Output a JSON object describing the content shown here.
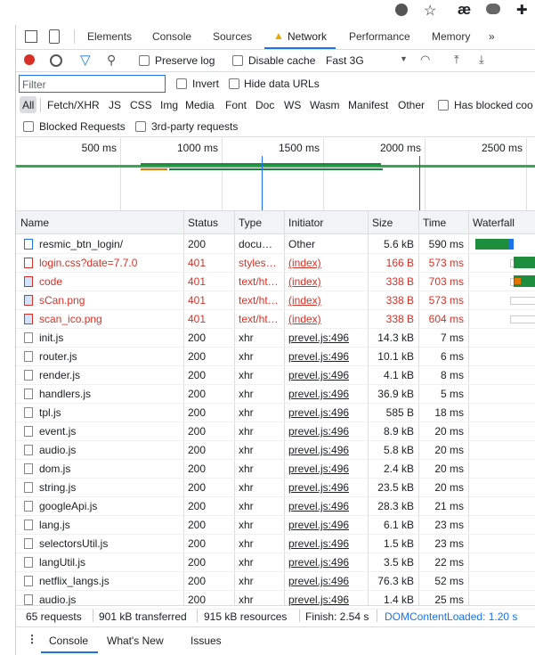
{
  "browser": {
    "extension_icon": "æ"
  },
  "tabs": [
    "Elements",
    "Console",
    "Sources",
    "Network",
    "Performance",
    "Memory",
    "»"
  ],
  "toolbar": {
    "preserve_log": "Preserve log",
    "disable_cache": "Disable cache",
    "throttling": "Fast 3G"
  },
  "filter": {
    "placeholder": "Filter",
    "invert": "Invert",
    "hide_data_urls": "Hide data URLs"
  },
  "type_filters": [
    "All",
    "Fetch/XHR",
    "JS",
    "CSS",
    "Img",
    "Media",
    "Font",
    "Doc",
    "WS",
    "Wasm",
    "Manifest",
    "Other"
  ],
  "has_blocked_cookies": "Has blocked coo",
  "blocked_requests": "Blocked Requests",
  "third_party": "3rd-party requests",
  "overview": {
    "ticks": [
      "500 ms",
      "1000 ms",
      "1500 ms",
      "2000 ms",
      "2500 ms"
    ]
  },
  "table": {
    "columns": [
      "Name",
      "Status",
      "Type",
      "Initiator",
      "Size",
      "Time",
      "Waterfall"
    ],
    "rows": [
      [
        "resmic_btn_login/",
        "200",
        "docu…",
        "Other",
        "5.6 kB",
        "590 ms"
      ],
      [
        "login.css?date=7.7.0",
        "401",
        "styles…",
        "(index)",
        "166 B",
        "573 ms"
      ],
      [
        "code",
        "401",
        "text/ht…",
        "(index)",
        "338 B",
        "703 ms"
      ],
      [
        "sCan.png",
        "401",
        "text/ht…",
        "(index)",
        "338 B",
        "573 ms"
      ],
      [
        "scan_ico.png",
        "401",
        "text/ht…",
        "(index)",
        "338 B",
        "604 ms"
      ],
      [
        "init.js",
        "200",
        "xhr",
        "prevel.js:496",
        "14.3 kB",
        "7 ms"
      ],
      [
        "router.js",
        "200",
        "xhr",
        "prevel.js:496",
        "10.1 kB",
        "6 ms"
      ],
      [
        "render.js",
        "200",
        "xhr",
        "prevel.js:496",
        "4.1 kB",
        "8 ms"
      ],
      [
        "handlers.js",
        "200",
        "xhr",
        "prevel.js:496",
        "36.9 kB",
        "5 ms"
      ],
      [
        "tpl.js",
        "200",
        "xhr",
        "prevel.js:496",
        "585 B",
        "18 ms"
      ],
      [
        "event.js",
        "200",
        "xhr",
        "prevel.js:496",
        "8.9 kB",
        "20 ms"
      ],
      [
        "audio.js",
        "200",
        "xhr",
        "prevel.js:496",
        "5.8 kB",
        "20 ms"
      ],
      [
        "dom.js",
        "200",
        "xhr",
        "prevel.js:496",
        "2.4 kB",
        "20 ms"
      ],
      [
        "string.js",
        "200",
        "xhr",
        "prevel.js:496",
        "23.5 kB",
        "20 ms"
      ],
      [
        "googleApi.js",
        "200",
        "xhr",
        "prevel.js:496",
        "28.3 kB",
        "21 ms"
      ],
      [
        "lang.js",
        "200",
        "xhr",
        "prevel.js:496",
        "6.1 kB",
        "23 ms"
      ],
      [
        "selectorsUtil.js",
        "200",
        "xhr",
        "prevel.js:496",
        "1.5 kB",
        "23 ms"
      ],
      [
        "langUtil.js",
        "200",
        "xhr",
        "prevel.js:496",
        "3.5 kB",
        "22 ms"
      ],
      [
        "netflix_langs.js",
        "200",
        "xhr",
        "prevel.js:496",
        "76.3 kB",
        "52 ms"
      ],
      [
        "audio.js",
        "200",
        "xhr",
        "prevel.js:496",
        "1.4 kB",
        "25 ms"
      ]
    ]
  },
  "summary": [
    "65 requests",
    "901 kB transferred",
    "915 kB resources",
    "Finish: 2.54 s",
    "DOMContentLoaded: 1.20 s"
  ],
  "drawer": {
    "tabs": [
      "Console",
      "What's New",
      "Issues"
    ]
  }
}
